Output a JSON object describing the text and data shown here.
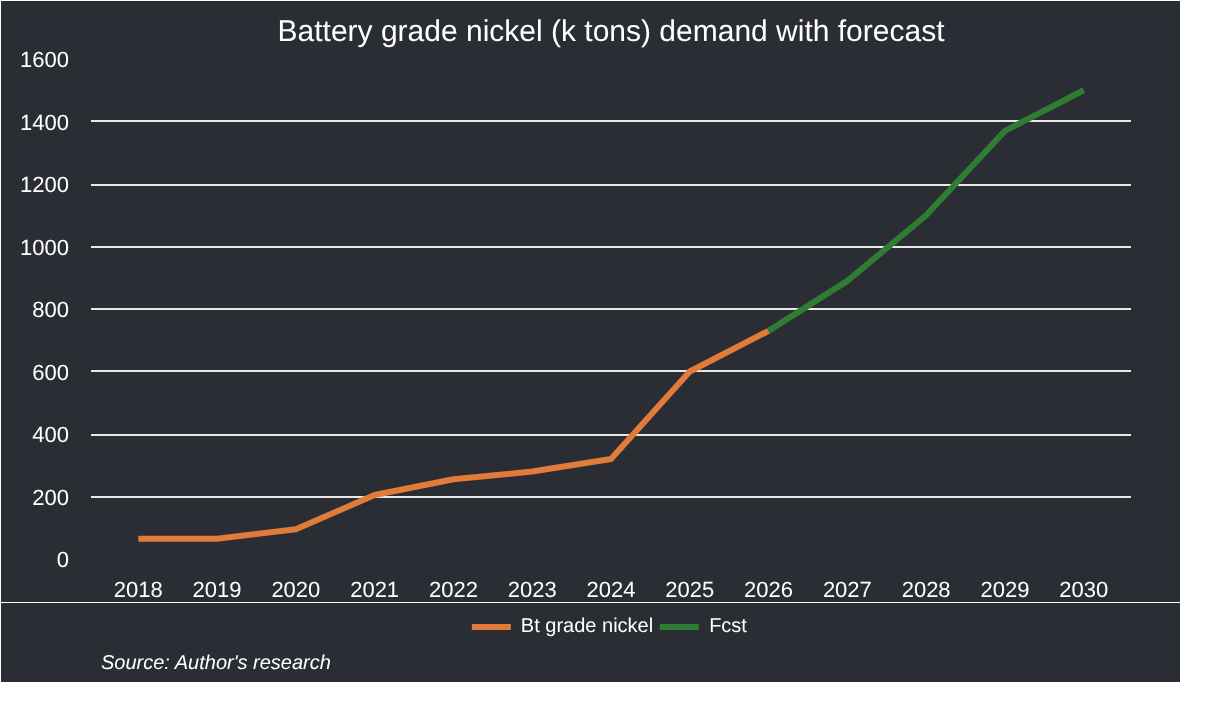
{
  "chart_data": {
    "type": "line",
    "title": "Battery grade nickel (k tons) demand with forecast",
    "categories": [
      "2018",
      "2019",
      "2020",
      "2021",
      "2022",
      "2023",
      "2024",
      "2025",
      "2026",
      "2027",
      "2028",
      "2029",
      "2030"
    ],
    "series": [
      {
        "name": "Bt grade nickel",
        "color": "#e07b39",
        "values": [
          65,
          65,
          95,
          205,
          255,
          280,
          320,
          600,
          730,
          null,
          null,
          null,
          null
        ]
      },
      {
        "name": "Fcst",
        "color": "#2e7d32",
        "values": [
          null,
          null,
          null,
          null,
          null,
          null,
          null,
          null,
          730,
          890,
          1100,
          1370,
          1500
        ]
      }
    ],
    "ylim": [
      0,
      1600
    ],
    "yticks": [
      0,
      200,
      400,
      600,
      800,
      1000,
      1200,
      1400,
      1600
    ],
    "grid": "y",
    "legend": "bottom",
    "marker": "none",
    "line_style": "solid",
    "annotations": [
      "Source: Author's research"
    ]
  }
}
